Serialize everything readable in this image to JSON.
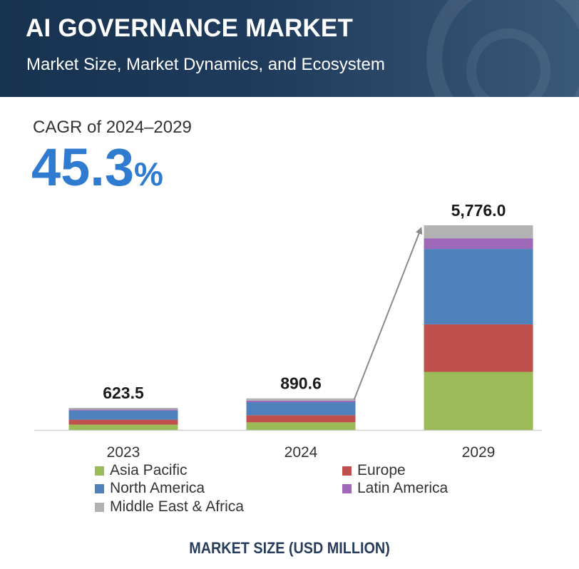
{
  "header": {
    "title": "AI GOVERNANCE MARKET",
    "subtitle": "Market Size, Market Dynamics, and Ecosystem"
  },
  "cagr": {
    "label": "CAGR of 2024–2029",
    "value": "45.3",
    "unit": "%"
  },
  "colors": {
    "banner": "#1f3b5c",
    "accent": "#2f7bd0",
    "asia_pacific": "#9bbb59",
    "europe": "#c0504d",
    "north_america": "#4f81bd",
    "latin_america": "#9e67b8",
    "middle_east_africa": "#b2b2b2"
  },
  "chart_data": {
    "type": "bar",
    "stacked": true,
    "categories": [
      "2023",
      "2024",
      "2029"
    ],
    "totals": [
      623.5,
      890.6,
      5776.0
    ],
    "total_labels": [
      "623.5",
      "890.6",
      "5,776.0"
    ],
    "series": [
      {
        "name": "Asia Pacific",
        "color": "#9bbb59",
        "values": [
          150,
          215,
          1640
        ]
      },
      {
        "name": "Europe",
        "color": "#c0504d",
        "values": [
          140,
          200,
          1340
        ]
      },
      {
        "name": "North America",
        "color": "#4f81bd",
        "values": [
          260,
          370,
          2130
        ]
      },
      {
        "name": "Latin America",
        "color": "#9e67b8",
        "values": [
          30,
          42,
          300
        ]
      },
      {
        "name": "Middle East & Africa",
        "color": "#b2b2b2",
        "values": [
          43.5,
          63.6,
          366
        ]
      }
    ],
    "ylim": [
      0,
      5776
    ],
    "grid": false,
    "xlabel": "MARKET SIZE (USD MILLION)",
    "ylabel": "",
    "legend_position": "bottom"
  }
}
